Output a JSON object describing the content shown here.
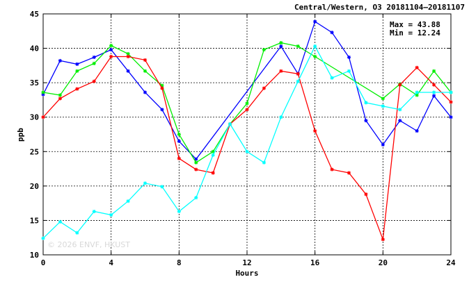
{
  "chart_data": {
    "type": "line",
    "title": "Central/Western, O3 20181104–20181107",
    "xlabel": "Hours",
    "ylabel": "ppb",
    "xlim": [
      0,
      24
    ],
    "ylim": [
      10,
      45
    ],
    "xticks": [
      0,
      4,
      8,
      12,
      16,
      20,
      24
    ],
    "yticks": [
      10,
      15,
      20,
      25,
      30,
      35,
      40,
      45
    ],
    "grid": true,
    "max_label": "Max = 43.88",
    "min_label": "Min = 12.24",
    "watermark": "© 2026  ENVF, HKUST",
    "series": [
      {
        "color": "#0000ff",
        "x": [
          0,
          1,
          2,
          3,
          4,
          5,
          6,
          7,
          8,
          9,
          14,
          15,
          16,
          17,
          18,
          19,
          20,
          21,
          22,
          23,
          24
        ],
        "values": [
          33.3,
          38.2,
          37.7,
          38.7,
          39.8,
          36.7,
          33.6,
          31.1,
          26.5,
          23.9,
          40.3,
          36.3,
          43.88,
          42.3,
          38.7,
          29.5,
          26.0,
          29.5,
          28.0,
          33.1,
          30.0
        ]
      },
      {
        "color": "#00ee00",
        "x": [
          0,
          1,
          2,
          3,
          4,
          5,
          6,
          7,
          8,
          9,
          10,
          11,
          12,
          13,
          14,
          15,
          16,
          20,
          21,
          22,
          23,
          24
        ],
        "values": [
          33.6,
          33.2,
          36.7,
          37.8,
          40.4,
          39.2,
          36.7,
          34.6,
          27.5,
          23.4,
          25.0,
          29.0,
          32.0,
          39.8,
          40.8,
          40.3,
          38.8,
          32.7,
          34.8,
          33.2,
          36.7,
          33.6
        ]
      },
      {
        "color": "#ff0000",
        "x": [
          0,
          1,
          2,
          3,
          4,
          5,
          6,
          7,
          8,
          9,
          10,
          11,
          12,
          13,
          14,
          15,
          16,
          17,
          18,
          19,
          20,
          21,
          22,
          23,
          24
        ],
        "values": [
          30.0,
          32.7,
          34.1,
          35.2,
          38.8,
          38.8,
          38.3,
          34.2,
          24.0,
          22.4,
          21.9,
          29.0,
          31.1,
          34.2,
          36.7,
          36.3,
          28.0,
          22.4,
          21.9,
          18.8,
          12.24,
          34.7,
          37.2,
          34.7,
          32.2
        ]
      },
      {
        "color": "#00ffff",
        "x": [
          0,
          1,
          2,
          3,
          4,
          5,
          6,
          7,
          8,
          9,
          10,
          11,
          12,
          13,
          14,
          15,
          16,
          17,
          18,
          19,
          20,
          21,
          22,
          23,
          24
        ],
        "values": [
          12.4,
          14.8,
          13.2,
          16.3,
          15.8,
          17.8,
          20.4,
          19.9,
          16.3,
          18.3,
          24.5,
          29.0,
          25.0,
          23.4,
          30.0,
          35.2,
          40.3,
          35.7,
          36.7,
          32.1,
          31.6,
          31.1,
          33.6,
          33.6,
          33.6
        ]
      }
    ]
  }
}
